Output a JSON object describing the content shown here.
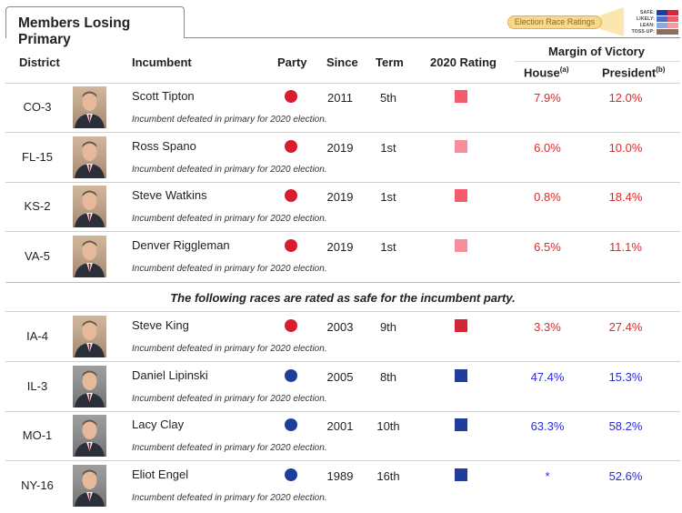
{
  "tab_title": "Members Losing Primary",
  "legend": {
    "button_label": "Election Race Ratings",
    "keys": [
      {
        "label": "SAFE:",
        "dem": "#1f3d9a",
        "rep": "#d8253a"
      },
      {
        "label": "LIKELY:",
        "dem": "#4a6fcc",
        "rep": "#ef5b6a"
      },
      {
        "label": "LEAN:",
        "dem": "#8da6e6",
        "rep": "#f59aa3"
      },
      {
        "label": "TOSS-UP:",
        "dem": "#8b6f5a",
        "rep": "#8b6f5a"
      }
    ]
  },
  "headers": {
    "district": "District",
    "incumbent": "Incumbent",
    "party": "Party",
    "since": "Since",
    "term": "Term",
    "rating": "2020 Rating",
    "margin": "Margin of Victory",
    "house": "House",
    "house_sup": "(a)",
    "president": "President",
    "president_sup": "(b)"
  },
  "divider_text": "The following races are rated as safe for the incumbent party.",
  "colors": {
    "rep_party": "#d81e2e",
    "dem_party": "#1d3f9a",
    "rating_likely_rep": "#f45c6c",
    "rating_lean_rep": "#f68f9b",
    "rating_safe_rep": "#d32636",
    "rating_safe_dem": "#1f3d9a"
  },
  "rows": [
    {
      "district": "CO-3",
      "name": "Scott Tipton",
      "note": "Incumbent defeated in primary for 2020 election.",
      "party": "rep",
      "since": "2011",
      "term": "5th",
      "rating": "rating_likely_rep",
      "house": "7.9%",
      "president": "12.0%",
      "house_color": "red",
      "pres_color": "red"
    },
    {
      "district": "FL-15",
      "name": "Ross Spano",
      "note": "Incumbent defeated in primary for 2020 election.",
      "party": "rep",
      "since": "2019",
      "term": "1st",
      "rating": "rating_lean_rep",
      "house": "6.0%",
      "president": "10.0%",
      "house_color": "red",
      "pres_color": "red"
    },
    {
      "district": "KS-2",
      "name": "Steve Watkins",
      "note": "Incumbent defeated in primary for 2020 election.",
      "party": "rep",
      "since": "2019",
      "term": "1st",
      "rating": "rating_likely_rep",
      "house": "0.8%",
      "president": "18.4%",
      "house_color": "red",
      "pres_color": "red"
    },
    {
      "district": "VA-5",
      "name": "Denver Riggleman",
      "note": "Incumbent defeated in primary for 2020 election.",
      "party": "rep",
      "since": "2019",
      "term": "1st",
      "rating": "rating_lean_rep",
      "house": "6.5%",
      "president": "11.1%",
      "house_color": "red",
      "pres_color": "red"
    },
    {
      "district": "IA-4",
      "name": "Steve King",
      "note": "Incumbent defeated in primary for 2020 election.",
      "party": "rep",
      "since": "2003",
      "term": "9th",
      "rating": "rating_safe_rep",
      "house": "3.3%",
      "president": "27.4%",
      "house_color": "red",
      "pres_color": "red"
    },
    {
      "district": "IL-3",
      "name": "Daniel Lipinski",
      "note": "Incumbent defeated in primary for 2020 election.",
      "party": "dem",
      "since": "2005",
      "term": "8th",
      "rating": "rating_safe_dem",
      "house": "47.4%",
      "president": "15.3%",
      "house_color": "blue",
      "pres_color": "blue"
    },
    {
      "district": "MO-1",
      "name": "Lacy Clay",
      "note": "Incumbent defeated in primary for 2020 election.",
      "party": "dem",
      "since": "2001",
      "term": "10th",
      "rating": "rating_safe_dem",
      "house": "63.3%",
      "president": "58.2%",
      "house_color": "blue",
      "pres_color": "blue"
    },
    {
      "district": "NY-16",
      "name": "Eliot Engel",
      "note": "Incumbent defeated in primary for 2020 election.",
      "party": "dem",
      "since": "1989",
      "term": "16th",
      "rating": "rating_safe_dem",
      "house": "*",
      "president": "52.6%",
      "house_color": "blue",
      "pres_color": "blue"
    }
  ]
}
